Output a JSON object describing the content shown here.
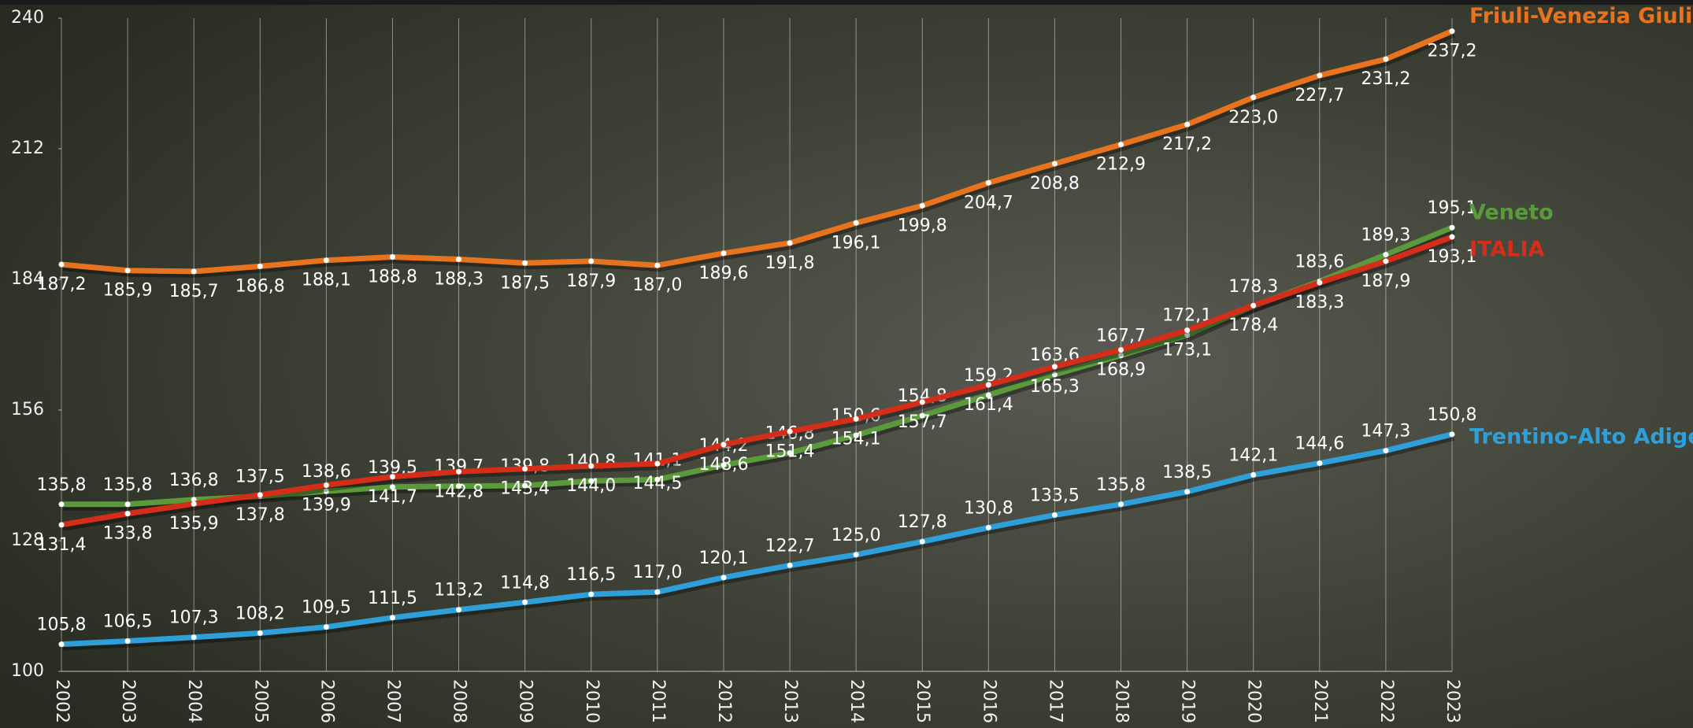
{
  "chart_data": {
    "type": "line",
    "categories": [
      "2002",
      "2003",
      "2004",
      "2005",
      "2006",
      "2007",
      "2008",
      "2009",
      "2010",
      "2011",
      "2012",
      "2013",
      "2014",
      "2015",
      "2016",
      "2017",
      "2018",
      "2019",
      "2020",
      "2021",
      "2022",
      "2023"
    ],
    "ylim": [
      100,
      240
    ],
    "yticks": [
      100,
      128,
      156,
      184,
      212,
      240
    ],
    "grid": true,
    "series": [
      {
        "name": "Friuli-Venezia Giulia",
        "color": "#e8731e",
        "values": [
          187.2,
          185.9,
          185.7,
          186.8,
          188.1,
          188.8,
          188.3,
          187.5,
          187.9,
          187.0,
          189.6,
          191.8,
          196.1,
          199.8,
          204.7,
          208.8,
          212.9,
          217.2,
          223.0,
          227.7,
          231.2,
          237.2
        ],
        "value_labels": [
          "187,2",
          "185,9",
          "185,7",
          "186,8",
          "188,1",
          "188,8",
          "188,3",
          "187,5",
          "187,9",
          "187,0",
          "189,6",
          "191,8",
          "196,1",
          "199,8",
          "204,7",
          "208,8",
          "212,9",
          "217,2",
          "223,0",
          "227,7",
          "231,2",
          "237,2"
        ]
      },
      {
        "name": "Veneto",
        "color": "#5a9a3a",
        "values": [
          135.8,
          135.8,
          136.8,
          137.5,
          138.6,
          139.5,
          139.7,
          139.8,
          140.8,
          141.1,
          144.2,
          146.8,
          150.6,
          154.8,
          159.2,
          163.6,
          167.7,
          172.1,
          178.3,
          183.6,
          189.3,
          195.1
        ],
        "value_labels": [
          "135,8",
          "135,8",
          "136,8",
          "137,5",
          "138,6",
          "139,5",
          "139,7",
          "139,8",
          "140,8",
          "141,1",
          "144,2",
          "146,8",
          "150,6",
          "154,8",
          "159,2",
          "163,6",
          "167,7",
          "172,1",
          "178,3",
          "183,6",
          "189,3",
          "195,1"
        ]
      },
      {
        "name": "ITALIA",
        "color": "#d42e1a",
        "values": [
          131.4,
          133.8,
          135.9,
          137.8,
          139.9,
          141.7,
          142.8,
          143.4,
          144.0,
          144.5,
          148.6,
          151.4,
          154.1,
          157.7,
          161.4,
          165.3,
          168.9,
          173.1,
          178.4,
          183.3,
          187.9,
          193.1
        ],
        "value_labels": [
          "131,4",
          "133,8",
          "135,9",
          "137,8",
          "139,9",
          "141,7",
          "142,8",
          "143,4",
          "144,0",
          "144,5",
          "148,6",
          "151,4",
          "154,1",
          "157,7",
          "161,4",
          "165,3",
          "168,9",
          "173,1",
          "178,4",
          "183,3",
          "187,9",
          "193,1"
        ]
      },
      {
        "name": "Trentino-Alto Adige",
        "color": "#2e9fd8",
        "values": [
          105.8,
          106.5,
          107.3,
          108.2,
          109.5,
          111.5,
          113.2,
          114.8,
          116.5,
          117.0,
          120.1,
          122.7,
          125.0,
          127.8,
          130.8,
          133.5,
          135.8,
          138.5,
          142.1,
          144.6,
          147.3,
          150.8
        ],
        "value_labels": [
          "105,8",
          "106,5",
          "107,3",
          "108,2",
          "109,5",
          "111,5",
          "113,2",
          "114,8",
          "116,5",
          "117,0",
          "120,1",
          "122,7",
          "125,0",
          "127,8",
          "130,8",
          "133,5",
          "135,8",
          "138,5",
          "142,1",
          "144,6",
          "147,3",
          "150,8"
        ]
      }
    ]
  }
}
